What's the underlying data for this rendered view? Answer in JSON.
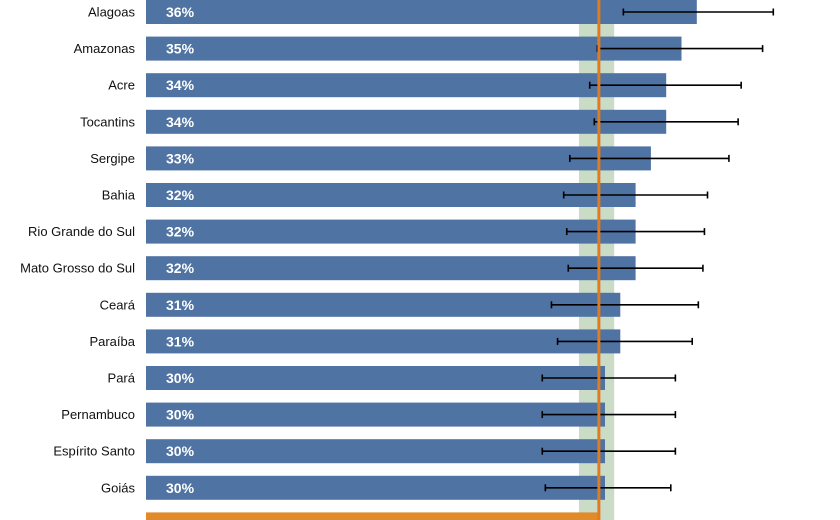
{
  "chart_data": {
    "type": "bar",
    "orientation": "horizontal",
    "categories": [
      "Alagoas",
      "Amazonas",
      "Acre",
      "Tocantins",
      "Sergipe",
      "Bahia",
      "Rio Grande do Sul",
      "Mato Grosso do Sul",
      "Ceará",
      "Paraíba",
      "Pará",
      "Pernambuco",
      "Espírito Santo",
      "Goiás"
    ],
    "values": [
      36,
      35,
      34,
      34,
      33,
      32,
      32,
      32,
      31,
      31,
      30,
      30,
      30,
      30
    ],
    "value_labels": [
      "36%",
      "35%",
      "34%",
      "34%",
      "33%",
      "32%",
      "32%",
      "32%",
      "31%",
      "31%",
      "30%",
      "30%",
      "30%",
      "30%"
    ],
    "error_low": [
      31.2,
      29.5,
      29.0,
      29.3,
      27.7,
      27.3,
      27.5,
      27.6,
      26.5,
      26.9,
      25.9,
      25.9,
      25.9,
      26.1
    ],
    "error_high": [
      41.0,
      40.3,
      38.9,
      38.7,
      38.1,
      36.7,
      36.5,
      36.4,
      36.1,
      35.7,
      34.6,
      34.6,
      34.6,
      34.3
    ],
    "reference_value": 29.6,
    "reference_band": [
      28.3,
      30.6
    ],
    "next_bar_partial": true,
    "xlim": [
      0,
      45
    ],
    "colors": {
      "bar": "#4f73a3",
      "error_bar": "#000000",
      "reference_line": "#e07b20",
      "reference_band": "#9fbe98",
      "next_bar": "#e08a2a"
    }
  }
}
